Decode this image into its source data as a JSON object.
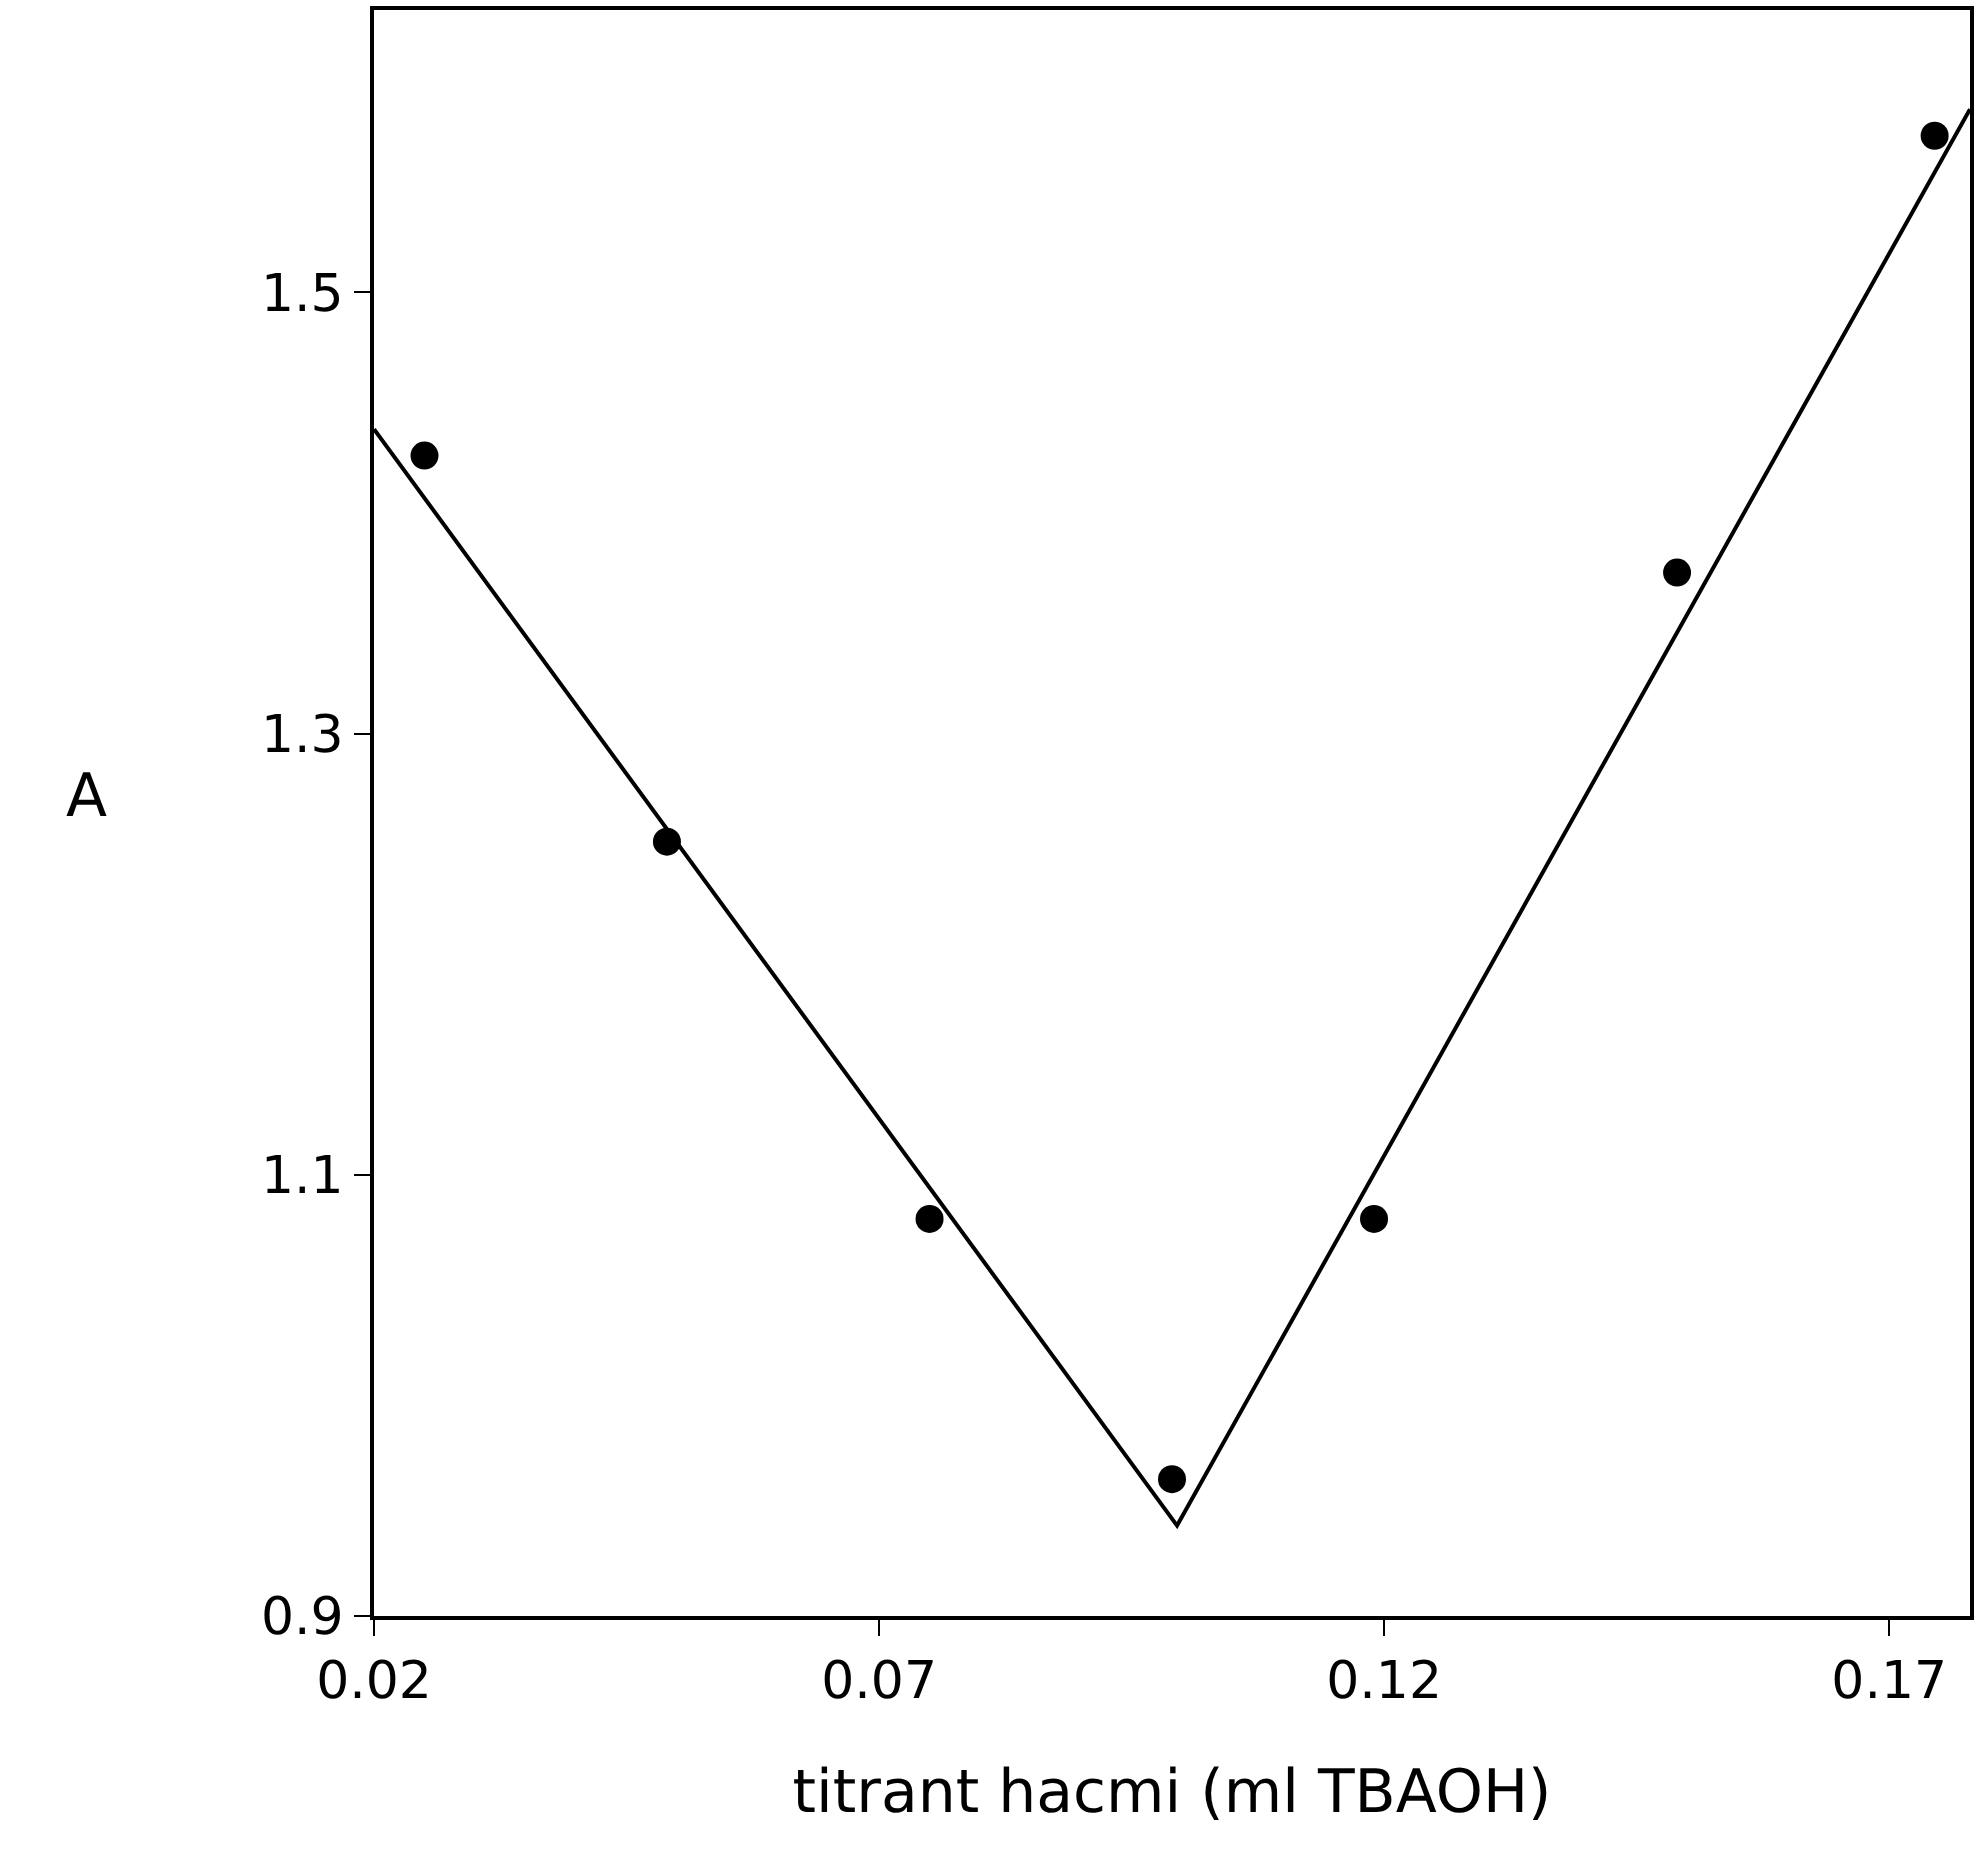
{
  "chart_data": {
    "type": "scatter",
    "xlabel": "titrant hacmi (ml TBAOH)",
    "ylabel": "A",
    "xlim": [
      0.02,
      0.178
    ],
    "ylim": [
      0.9,
      1.628
    ],
    "xticks": [
      0.02,
      0.07,
      0.12,
      0.17
    ],
    "yticks": [
      0.9,
      1.1,
      1.3,
      1.5
    ],
    "grid": false,
    "legend": false,
    "marker": "circle",
    "series": [
      {
        "color": "#000000",
        "x": [
          0.025,
          0.049,
          0.075,
          0.099,
          0.119,
          0.149,
          0.1745
        ],
        "values": [
          1.426,
          1.251,
          1.08,
          0.962,
          1.08,
          1.373,
          1.571
        ]
      },
      {
        "type": "line",
        "color": "#000000",
        "line_style": "solid",
        "marker": "none",
        "x": [
          0.02,
          0.0995,
          0.178
        ],
        "values": [
          1.438,
          0.941,
          1.583
        ]
      }
    ]
  }
}
